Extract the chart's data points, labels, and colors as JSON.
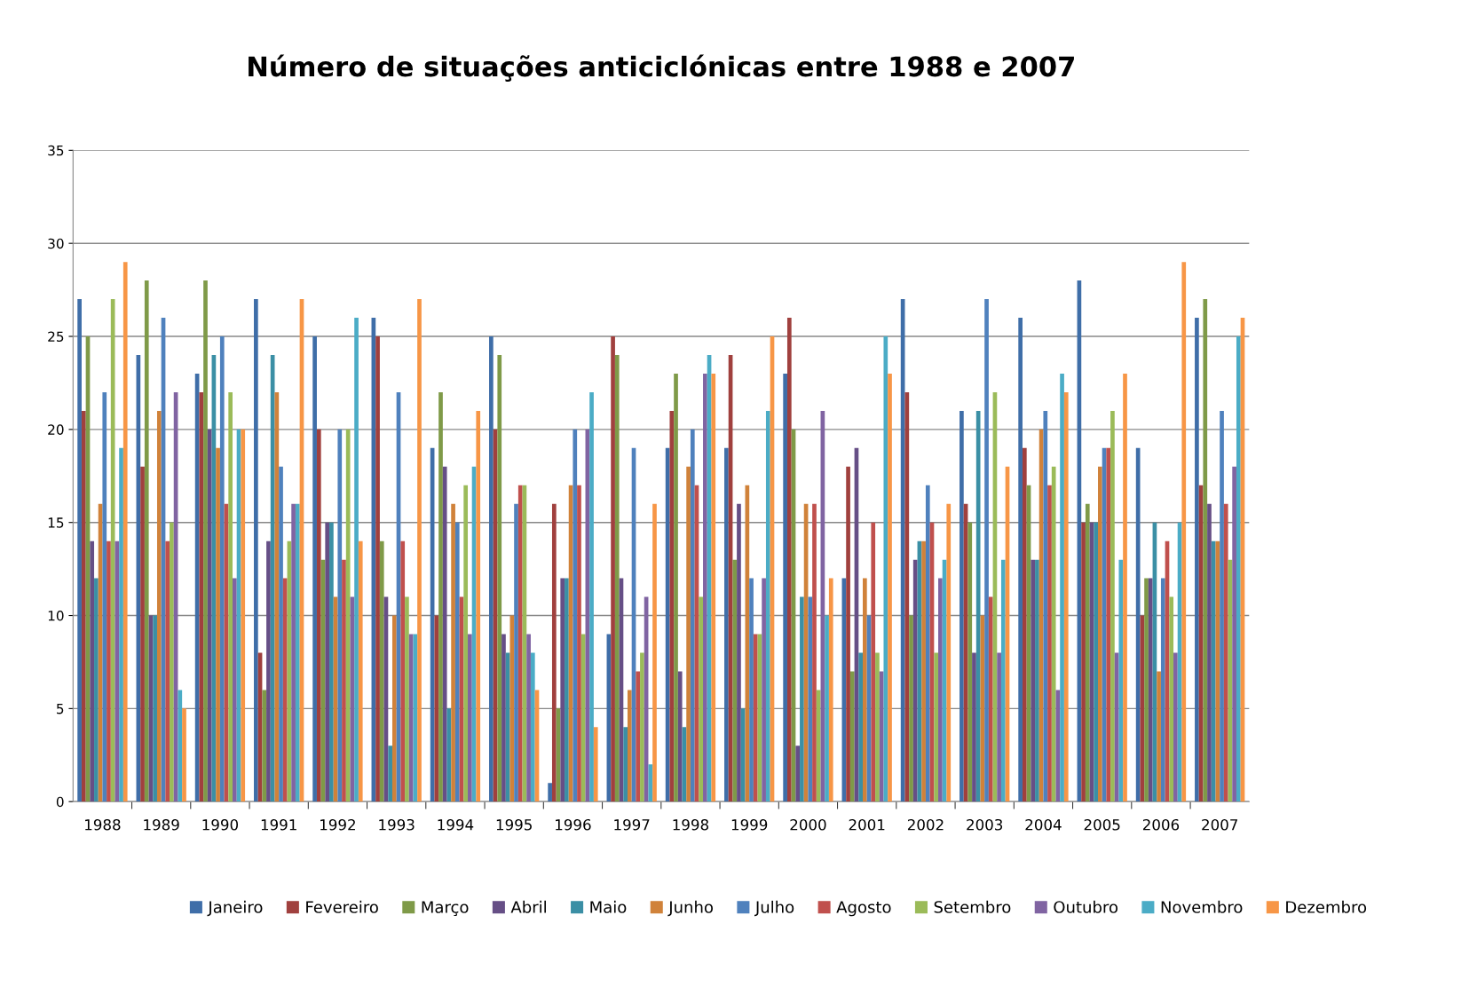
{
  "chart_data": {
    "type": "bar",
    "title": "Número de situações anticiclónicas entre 1988 e 2007",
    "categories": [
      "1988",
      "1989",
      "1990",
      "1991",
      "1992",
      "1993",
      "1994",
      "1995",
      "1996",
      "1997",
      "1998",
      "1999",
      "2000",
      "2001",
      "2002",
      "2003",
      "2004",
      "2005",
      "2006",
      "2007"
    ],
    "series": [
      {
        "name": "Janeiro",
        "color": "#3f6ea8",
        "values": [
          27,
          24,
          23,
          27,
          25,
          26,
          19,
          25,
          1,
          9,
          19,
          19,
          23,
          12,
          27,
          21,
          26,
          28,
          19,
          26
        ]
      },
      {
        "name": "Fevereiro",
        "color": "#a0403e",
        "values": [
          21,
          18,
          22,
          8,
          20,
          25,
          10,
          20,
          16,
          25,
          21,
          24,
          26,
          18,
          22,
          16,
          19,
          15,
          10,
          17
        ]
      },
      {
        "name": "Março",
        "color": "#7f9a48",
        "values": [
          25,
          28,
          28,
          6,
          13,
          14,
          22,
          24,
          5,
          24,
          23,
          13,
          20,
          7,
          10,
          15,
          17,
          16,
          12,
          27
        ]
      },
      {
        "name": "Abril",
        "color": "#664f86",
        "values": [
          14,
          10,
          20,
          14,
          15,
          11,
          18,
          9,
          12,
          12,
          7,
          16,
          3,
          19,
          13,
          8,
          13,
          15,
          12,
          16
        ]
      },
      {
        "name": "Maio",
        "color": "#3b8fa5",
        "values": [
          12,
          10,
          24,
          24,
          15,
          3,
          5,
          8,
          12,
          4,
          4,
          5,
          11,
          8,
          14,
          21,
          13,
          15,
          15,
          14
        ]
      },
      {
        "name": "Junho",
        "color": "#d0823a",
        "values": [
          16,
          21,
          19,
          22,
          11,
          10,
          16,
          10,
          17,
          6,
          18,
          17,
          16,
          12,
          14,
          10,
          20,
          18,
          7,
          14
        ]
      },
      {
        "name": "Julho",
        "color": "#4f81bd",
        "values": [
          22,
          26,
          25,
          18,
          20,
          22,
          15,
          16,
          20,
          19,
          20,
          12,
          11,
          10,
          17,
          27,
          21,
          19,
          12,
          21
        ]
      },
      {
        "name": "Agosto",
        "color": "#c0504d",
        "values": [
          14,
          14,
          16,
          12,
          13,
          14,
          11,
          17,
          17,
          7,
          17,
          9,
          16,
          15,
          15,
          11,
          17,
          19,
          14,
          16
        ]
      },
      {
        "name": "Setembro",
        "color": "#9bbb59",
        "values": [
          27,
          15,
          22,
          14,
          20,
          11,
          17,
          17,
          9,
          8,
          11,
          9,
          6,
          8,
          8,
          22,
          18,
          21,
          11,
          13
        ]
      },
      {
        "name": "Outubro",
        "color": "#8064a2",
        "values": [
          14,
          22,
          12,
          16,
          11,
          9,
          9,
          9,
          20,
          11,
          23,
          12,
          21,
          7,
          12,
          8,
          6,
          8,
          8,
          18
        ]
      },
      {
        "name": "Novembro",
        "color": "#4bacc6",
        "values": [
          19,
          6,
          20,
          16,
          26,
          9,
          18,
          8,
          22,
          2,
          24,
          21,
          10,
          25,
          13,
          13,
          23,
          13,
          15,
          25
        ]
      },
      {
        "name": "Dezembro",
        "color": "#f79646",
        "values": [
          29,
          5,
          20,
          27,
          14,
          27,
          21,
          6,
          4,
          16,
          23,
          25,
          12,
          23,
          16,
          18,
          22,
          23,
          29,
          26
        ]
      }
    ],
    "ylim": [
      0,
      35
    ],
    "yticks": [
      0,
      5,
      10,
      15,
      20,
      25,
      30,
      35
    ],
    "grid": "y",
    "legend": "bottom"
  }
}
